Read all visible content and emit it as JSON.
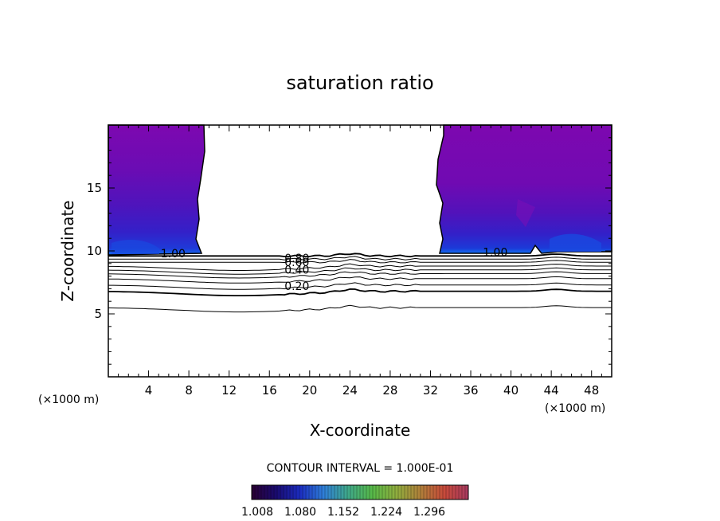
{
  "chart_data": {
    "type": "contour",
    "title": "saturation ratio",
    "xlabel": "X-coordinate",
    "ylabel": "Z-coordinate",
    "x_unit": "(×1000 m)",
    "xlim": [
      0,
      50
    ],
    "ylim": [
      0,
      20
    ],
    "x_ticks": [
      4,
      8,
      12,
      16,
      20,
      24,
      28,
      32,
      36,
      40,
      44,
      48
    ],
    "y_ticks": [
      5,
      10,
      15
    ],
    "contour_interval_text": "CONTOUR INTERVAL = 1.000E-01",
    "contour_line_labels": [
      {
        "text": "1.00",
        "x": 5.2,
        "z": 9.5
      },
      {
        "text": "0.80",
        "x": 17.5,
        "z": 9.1
      },
      {
        "text": "0.60",
        "x": 17.5,
        "z": 8.8
      },
      {
        "text": "0.40",
        "x": 17.5,
        "z": 8.2
      },
      {
        "text": "0.20",
        "x": 17.5,
        "z": 6.9
      },
      {
        "text": "1.00",
        "x": 37.2,
        "z": 9.6
      }
    ],
    "saturated_regions": [
      {
        "x_range": [
          0,
          9.5
        ],
        "z_range": [
          9.6,
          20
        ]
      },
      {
        "x_range": [
          32.5,
          50
        ],
        "z_range": [
          9.6,
          20
        ]
      }
    ],
    "colorbar": {
      "tick_labels": [
        "1.008",
        "1.080",
        "1.152",
        "1.224",
        "1.296"
      ],
      "colors": [
        "#2a0033",
        "#1a0a6e",
        "#1b2cc0",
        "#2f7fd8",
        "#3fa88a",
        "#56b848",
        "#8fae3e",
        "#b0803a",
        "#c84a3a",
        "#a83a60"
      ]
    },
    "fill_colors": [
      "#7a0ab0",
      "#5a0fb8",
      "#3a18c0",
      "#2a2ad0",
      "#1560e8"
    ]
  }
}
